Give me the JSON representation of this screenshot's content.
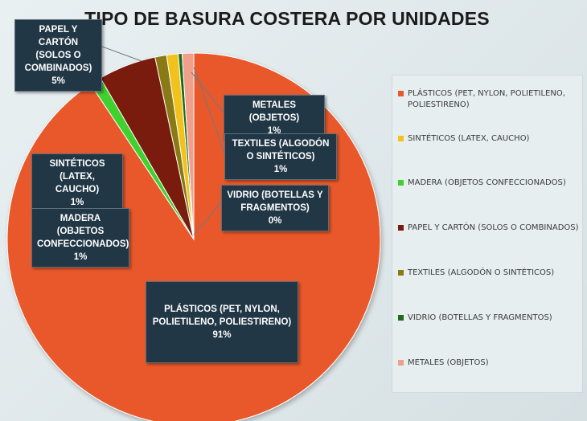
{
  "chart_data": {
    "type": "pie",
    "title": "TIPO DE BASURA COSTERA POR UNIDADES",
    "slices": [
      {
        "label": "PLÁSTICOS (PET, NYLON, POLIETILENO, POLIESTIRENO)",
        "value": 91,
        "pct": "91%",
        "color": "#e9582a"
      },
      {
        "label": "SINTÉTICOS (LATEX, CAUCHO)",
        "value": 1,
        "pct": "1%",
        "color": "#f2c21b"
      },
      {
        "label": "MADERA (OBJETOS CONFECCIONADOS)",
        "value": 1,
        "pct": "1%",
        "color": "#3fd12f"
      },
      {
        "label": "PAPEL Y CARTÓN (SOLOS O COMBINADOS)",
        "value": 5,
        "pct": "5%",
        "color": "#7a1a0c"
      },
      {
        "label": "TEXTILES (ALGODÓN O SINTÉTICOS)",
        "value": 1,
        "pct": "1%",
        "color": "#8a7a14"
      },
      {
        "label": "VIDRIO (BOTELLAS Y FRAGMENTOS)",
        "value": 0,
        "pct": "0%",
        "color": "#1e6b1e"
      },
      {
        "label": "METALES (OBJETOS)",
        "value": 1,
        "pct": "1%",
        "color": "#f0a08a"
      }
    ],
    "data_labels": {
      "papel": {
        "text": "PAPEL Y CARTÓN (SOLOS O COMBINADOS)",
        "pct": "5%"
      },
      "metales": {
        "text": "METALES (OBJETOS)",
        "pct": "1%"
      },
      "textiles": {
        "text": "TEXTILES (ALGODÓN O SINTÉTICOS)",
        "pct": "1%"
      },
      "sinteticos": {
        "text": "SINTÉTICOS (LATEX, CAUCHO)",
        "pct": "1%"
      },
      "vidrio": {
        "text": "VIDRIO (BOTELLAS Y FRAGMENTOS)",
        "pct": "0%"
      },
      "madera": {
        "text": "MADERA (OBJETOS CONFECCIONADOS)",
        "pct": "1%"
      },
      "plasticos": {
        "text": "PLÁSTICOS (PET, NYLON, POLIETILENO, POLIESTIRENO)",
        "pct": "91%"
      }
    },
    "legend": {
      "position": "right",
      "items": [
        {
          "label": "PLÁSTICOS (PET, NYLON, POLIETILENO, POLIESTIRENO)",
          "color": "#e9582a"
        },
        {
          "label": "SINTÉTICOS (LATEX, CAUCHO)",
          "color": "#f2c21b"
        },
        {
          "label": "MADERA (OBJETOS CONFECCIONADOS)",
          "color": "#3fd12f"
        },
        {
          "label": "PAPEL Y CARTÓN (SOLOS O COMBINADOS)",
          "color": "#7a1a0c"
        },
        {
          "label": "TEXTILES (ALGODÓN O SINTÉTICOS)",
          "color": "#8a7a14"
        },
        {
          "label": "VIDRIO (BOTELLAS Y FRAGMENTOS)",
          "color": "#1e6b1e"
        },
        {
          "label": "METALES (OBJETOS)",
          "color": "#f0a08a"
        }
      ]
    }
  }
}
